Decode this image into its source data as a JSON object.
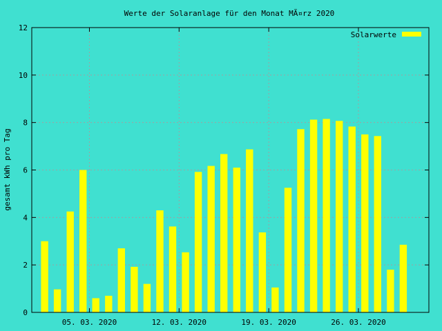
{
  "chart_data": {
    "type": "bar",
    "title": "Werte der Solaranlage für den Monat MÃ¤rz 2020",
    "ylabel": "gesamt kWh pro Tag",
    "xlabel": "",
    "ylim": [
      0,
      12
    ],
    "yticks": [
      "0",
      "2",
      "4",
      "6",
      "8",
      "10",
      "12"
    ],
    "xticks": [
      {
        "label": "05. 03. 2020",
        "day": 5
      },
      {
        "label": "12. 03. 2020",
        "day": 12
      },
      {
        "label": "19. 03. 2020",
        "day": 19
      },
      {
        "label": "26. 03. 2020",
        "day": 26
      }
    ],
    "grid": true,
    "legend_position": "top-right",
    "colors": {
      "background": "#40e0d0",
      "bar": "#ffff00",
      "grid": "#a0a0a0"
    },
    "series": [
      {
        "name": "Solarwerte",
        "days": [
          1,
          2,
          3,
          4,
          5,
          6,
          7,
          8,
          9,
          10,
          11,
          12,
          13,
          14,
          15,
          16,
          17,
          18,
          19,
          20,
          21,
          22,
          23,
          24,
          25,
          26,
          27,
          28,
          29,
          30,
          31
        ],
        "values": [
          3.0,
          0.97,
          4.25,
          6.0,
          0.6,
          0.7,
          2.7,
          1.92,
          1.2,
          4.3,
          3.62,
          2.53,
          5.92,
          6.17,
          6.67,
          6.1,
          6.87,
          3.37,
          1.05,
          5.25,
          7.72,
          8.12,
          8.15,
          8.07,
          7.83,
          7.5,
          7.43,
          1.8,
          2.85,
          null,
          null
        ]
      }
    ]
  }
}
